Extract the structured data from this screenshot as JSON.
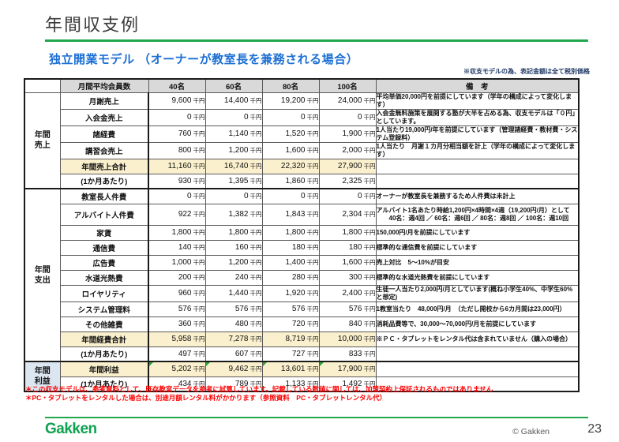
{
  "page": {
    "title": "年間収支例",
    "subtitle": "独立開業モデル （オーナーが教室長を兼務される場合）",
    "tax_note": "※収支モデルの為、表記金額は全て税別価格",
    "accent_green": "#21a74d",
    "accent_blue": "#1c6fd4",
    "highlight_yellow": "#fbf0cd",
    "group_blue": "#dce6f1",
    "footnote_red": "#ff0000",
    "footnotes": [
      "＊この収支モデルは、参考資料として、既存教室データを参考に試算しています。記載している数値に関しては、加盟契約上保証されるものではありません",
      "＊PC・タブレットをレンタルした場合は、別途月額レンタル料がかかります（参照資料　PC・タブレットレンタル代）"
    ],
    "footer": {
      "logo_text": "Gakken",
      "copyright": "© Gakken",
      "page_number": "23"
    }
  },
  "table": {
    "unit": "千円",
    "header": {
      "member_count_label": "月間平均会員数",
      "columns": [
        "40名",
        "60名",
        "80名",
        "100名"
      ],
      "remarks_label": "備　考"
    },
    "groups": [
      {
        "label": "年間\n売上",
        "rows": 6,
        "blue": false
      },
      {
        "label": "年間\n支出",
        "rows": 11,
        "blue": false
      },
      {
        "label": "年間\n利益",
        "rows": 2,
        "blue": true
      }
    ],
    "rows": [
      {
        "label": "月謝売上",
        "values": [
          "9,600",
          "14,400",
          "19,200",
          "24,000"
        ],
        "remark": "平均単価20,000円を前提にしています（学年の構成によって変化します）"
      },
      {
        "label": "入会金売上",
        "values": [
          "0",
          "0",
          "0",
          "0"
        ],
        "remark": "入会金無料施策を展開する塾が大半を占める為、収支モデルは「０円」としています。"
      },
      {
        "label": "諸経費",
        "values": [
          "760",
          "1,140",
          "1,520",
          "1,900"
        ],
        "remark": "1人当たり19,000円/年を前提にしています（管理諸経費・教材費・システム登録料）"
      },
      {
        "label": "講習会売上",
        "values": [
          "800",
          "1,200",
          "1,600",
          "2,000"
        ],
        "remark": "1人当たり　月謝１カ月分相当額を計上（学年の構成によって変化します）"
      },
      {
        "label": "年間売上合計",
        "values": [
          "11,160",
          "16,740",
          "22,320",
          "27,900"
        ],
        "remark": "",
        "highlight": true
      },
      {
        "label": "(1か月あたり)",
        "values": [
          "930",
          "1,395",
          "1,860",
          "2,325"
        ],
        "remark": ""
      },
      {
        "label": "教室長人件費",
        "values": [
          "0",
          "0",
          "0",
          "0"
        ],
        "remark": "オーナーが教室長を兼務するため人件費は未計上",
        "section_start": true
      },
      {
        "label": "アルバイト人件費",
        "values": [
          "922",
          "1,382",
          "1,843",
          "2,304"
        ],
        "remark": "アルバイト1名あたり時給1,200円×4時間×4週（19,200円/月）として\n　　40名：週4回 ／ 60名：週6回 ／ 80名：週8回 ／ 100名：週10回",
        "tall": true
      },
      {
        "label": "家賃",
        "values": [
          "1,800",
          "1,800",
          "1,800",
          "1,800"
        ],
        "remark": "150,000円/月を前提にしています"
      },
      {
        "label": "通信費",
        "values": [
          "140",
          "160",
          "180",
          "180"
        ],
        "remark": "標準的な通信費を前提にしています"
      },
      {
        "label": "広告費",
        "values": [
          "1,000",
          "1,200",
          "1,400",
          "1,600"
        ],
        "remark": "売上対比　5～10%が目安"
      },
      {
        "label": "水道光熱費",
        "values": [
          "200",
          "240",
          "280",
          "300"
        ],
        "remark": "標準的な水道光熱費を前提にしています"
      },
      {
        "label": "ロイヤリティ",
        "values": [
          "960",
          "1,440",
          "1,920",
          "2,400"
        ],
        "remark": "生徒一人当たり2,000円/月としています(概ね小学生40%、中学生60%と想定)"
      },
      {
        "label": "システム管理料",
        "values": [
          "576",
          "576",
          "576",
          "576"
        ],
        "remark": "1教室当たり　48,000円/月　（ただし開校から6カ月間は23,000円）"
      },
      {
        "label": "その他雑費",
        "values": [
          "360",
          "480",
          "720",
          "840"
        ],
        "remark": "消耗品費等で、30,000～70,000円/月を前提にしています"
      },
      {
        "label": "年間経費合計",
        "values": [
          "5,958",
          "7,278",
          "8,719",
          "10,000"
        ],
        "remark": "※ＰＣ・タブレットをレンタル代は含まれていません（購入の場合）",
        "highlight": true
      },
      {
        "label": "(1か月あたり)",
        "values": [
          "497",
          "607",
          "727",
          "833"
        ],
        "remark": ""
      },
      {
        "label": "年間利益",
        "values": [
          "5,202",
          "9,462",
          "13,601",
          "17,900"
        ],
        "remark": "",
        "highlight": true,
        "section_start": true,
        "comment_marker": true
      },
      {
        "label": "(1か月あたり)",
        "values": [
          "434",
          "789",
          "1,133",
          "1,492"
        ],
        "remark": ""
      }
    ]
  }
}
